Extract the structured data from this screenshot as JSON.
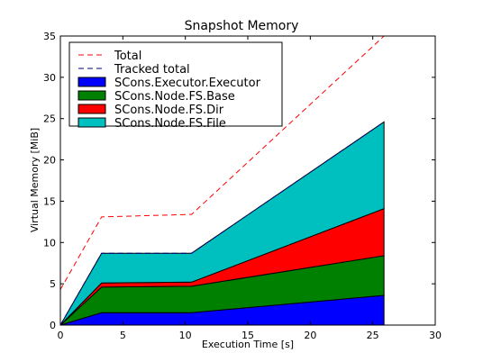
{
  "chart_data": {
    "type": "area",
    "title": "Snapshot Memory",
    "xlabel": "Execution Time [s]",
    "ylabel": "Virtual Memory [MiB]",
    "xlim": [
      0,
      30
    ],
    "ylim": [
      0,
      35
    ],
    "x_ticks": [
      "0",
      "5",
      "10",
      "15",
      "20",
      "25",
      "30"
    ],
    "y_ticks": [
      "0",
      "5",
      "10",
      "15",
      "20",
      "25",
      "30",
      "35"
    ],
    "grid": false,
    "legend_position": "top-left",
    "x": [
      0,
      3.3,
      10.5,
      25.9
    ],
    "stacked_series": [
      {
        "name": "SCons.Executor.Executor",
        "color": "#0000ff",
        "values": [
          0,
          1.5,
          1.5,
          3.6
        ]
      },
      {
        "name": "SCons.Node.FS.Base",
        "color": "#008000",
        "values": [
          0,
          3.1,
          3.2,
          4.8
        ]
      },
      {
        "name": "SCons.Node.FS.Dir",
        "color": "#ff0000",
        "values": [
          0,
          0.5,
          0.5,
          5.7
        ]
      },
      {
        "name": "SCons.Node.FS.File",
        "color": "#00bfbf",
        "values": [
          0,
          3.6,
          3.5,
          10.5
        ]
      }
    ],
    "line_series": [
      {
        "name": "Total",
        "color": "#ff0000",
        "style": "dashed",
        "x": [
          0,
          3.3,
          10.5,
          25.9
        ],
        "values": [
          4.3,
          13.1,
          13.4,
          35.0
        ]
      },
      {
        "name": "Tracked total",
        "color": "#000080",
        "style": "dashed",
        "x": [
          0,
          3.3,
          10.5,
          25.9
        ],
        "values": [
          0,
          8.7,
          8.7,
          24.6
        ]
      }
    ]
  }
}
